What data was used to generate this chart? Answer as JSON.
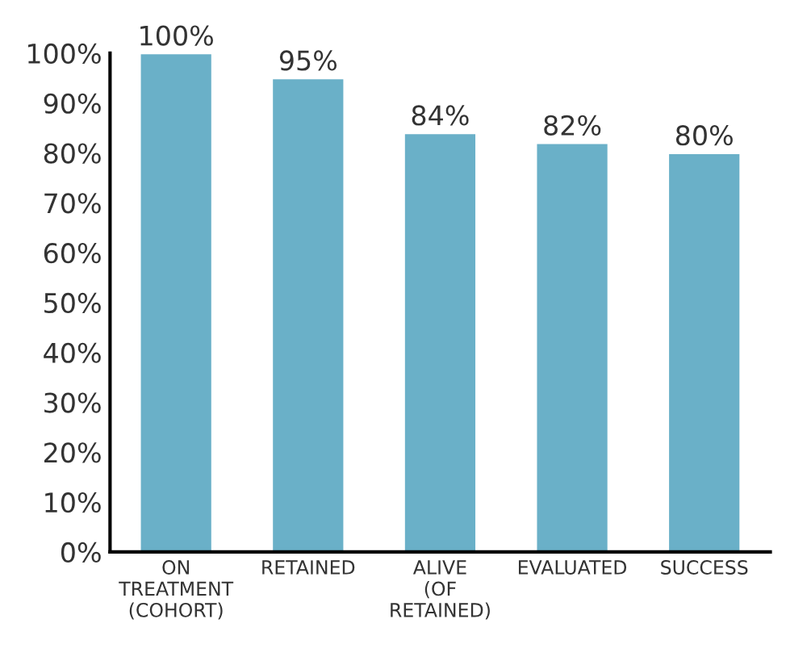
{
  "chart_data": {
    "type": "bar",
    "categories": [
      "ON TREATMENT (COHORT)",
      "RETAINED",
      "ALIVE (OF RETAINED)",
      "EVALUATED",
      "SUCCESS"
    ],
    "values": [
      100,
      95,
      84,
      82,
      80
    ],
    "value_labels": [
      "100%",
      "95%",
      "84%",
      "82%",
      "80%"
    ],
    "color": "#6ab0c8",
    "ylim": [
      0,
      100
    ],
    "yticks": [
      {
        "value": 0,
        "label": "0%"
      },
      {
        "value": 10,
        "label": "10%"
      },
      {
        "value": 20,
        "label": "20%"
      },
      {
        "value": 30,
        "label": "30%"
      },
      {
        "value": 40,
        "label": "40%"
      },
      {
        "value": 50,
        "label": "50%"
      },
      {
        "value": 60,
        "label": "60%"
      },
      {
        "value": 70,
        "label": "70%"
      },
      {
        "value": 80,
        "label": "80%"
      },
      {
        "value": 90,
        "label": "90%"
      },
      {
        "value": 100,
        "label": "100%"
      }
    ],
    "grid": false
  }
}
